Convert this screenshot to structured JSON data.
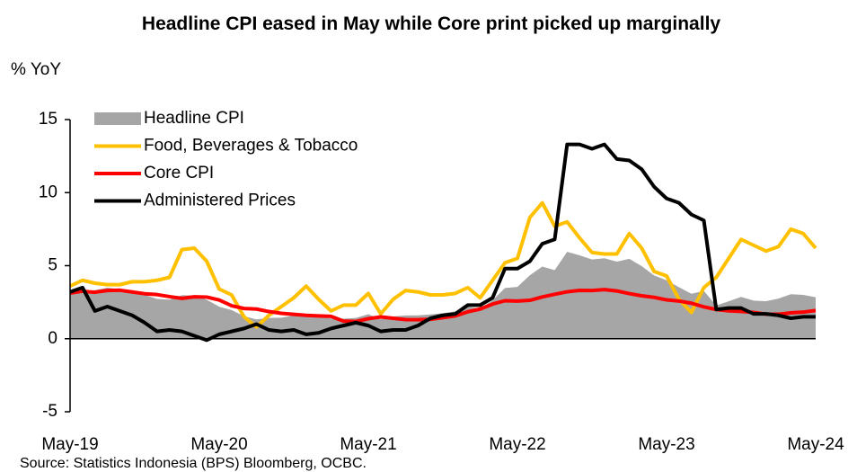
{
  "chart_data": {
    "type": "line",
    "title": "Headline CPI eased in May while Core print picked up marginally",
    "y_axis_label": "% YoY",
    "source": "Source: Statistics Indonesia (BPS) Bloomberg, OCBC.",
    "categories": [
      "May-19",
      null,
      null,
      null,
      null,
      null,
      null,
      null,
      null,
      null,
      null,
      null,
      "May-20",
      null,
      null,
      null,
      null,
      null,
      null,
      null,
      null,
      null,
      null,
      null,
      "May-21",
      null,
      null,
      null,
      null,
      null,
      null,
      null,
      null,
      null,
      null,
      null,
      "May-22",
      null,
      null,
      null,
      null,
      null,
      null,
      null,
      null,
      null,
      null,
      null,
      "May-23",
      null,
      null,
      null,
      null,
      null,
      null,
      null,
      null,
      null,
      null,
      null,
      "May-24"
    ],
    "ylim": [
      -5,
      15
    ],
    "yticks": [
      -5,
      0,
      5,
      10,
      15
    ],
    "legend": "upper left",
    "series": [
      {
        "name": "Headline CPI",
        "kind": "area",
        "color": "#a6a6a6",
        "values": [
          3.32,
          3.28,
          3.32,
          3.49,
          3.39,
          3.13,
          3.0,
          2.72,
          2.68,
          2.98,
          2.96,
          2.67,
          2.19,
          1.96,
          1.54,
          1.32,
          1.42,
          1.44,
          1.59,
          1.68,
          1.55,
          1.38,
          1.37,
          1.42,
          1.68,
          1.33,
          1.52,
          1.59,
          1.6,
          1.66,
          1.75,
          1.87,
          2.18,
          2.06,
          2.64,
          3.47,
          3.55,
          4.35,
          4.94,
          4.69,
          5.95,
          5.71,
          5.42,
          5.51,
          5.28,
          5.47,
          4.97,
          4.33,
          4.0,
          3.52,
          3.08,
          3.27,
          2.28,
          2.56,
          2.86,
          2.61,
          2.57,
          2.75,
          3.05,
          3.0,
          2.84
        ]
      },
      {
        "name": "Food, Beverages & Tobacco",
        "kind": "line",
        "color": "#ffc000",
        "values": [
          3.6,
          4.0,
          3.8,
          3.7,
          3.7,
          3.9,
          3.9,
          4.0,
          4.2,
          6.1,
          6.2,
          5.3,
          3.4,
          3.0,
          1.5,
          0.8,
          1.6,
          2.2,
          2.8,
          3.6,
          2.7,
          1.9,
          2.3,
          2.3,
          3.1,
          1.7,
          2.7,
          3.3,
          3.2,
          3.0,
          3.0,
          3.1,
          3.5,
          2.8,
          4.0,
          5.2,
          5.5,
          8.3,
          9.3,
          7.7,
          8.0,
          6.9,
          5.9,
          5.8,
          5.8,
          7.2,
          6.2,
          4.6,
          4.3,
          2.7,
          1.8,
          3.5,
          4.2,
          5.5,
          6.8,
          6.4,
          6.0,
          6.3,
          7.5,
          7.2,
          6.2
        ]
      },
      {
        "name": "Core CPI",
        "kind": "line",
        "color": "#ff0000",
        "values": [
          3.12,
          3.25,
          3.18,
          3.3,
          3.32,
          3.2,
          3.08,
          3.02,
          2.88,
          2.76,
          2.87,
          2.85,
          2.65,
          2.26,
          2.07,
          2.03,
          1.86,
          1.74,
          1.67,
          1.6,
          1.56,
          1.53,
          1.21,
          1.18,
          1.37,
          1.49,
          1.4,
          1.31,
          1.3,
          1.33,
          1.44,
          1.56,
          1.84,
          2.03,
          2.37,
          2.6,
          2.58,
          2.63,
          2.86,
          3.04,
          3.21,
          3.31,
          3.3,
          3.36,
          3.27,
          3.09,
          2.94,
          2.83,
          2.66,
          2.58,
          2.43,
          2.18,
          2.0,
          1.91,
          1.87,
          1.8,
          1.68,
          1.68,
          1.77,
          1.82,
          1.93
        ]
      },
      {
        "name": "Administered Prices",
        "kind": "line",
        "color": "#000000",
        "values": [
          3.2,
          3.5,
          1.9,
          2.2,
          1.9,
          1.6,
          1.1,
          0.5,
          0.6,
          0.5,
          0.2,
          -0.1,
          0.3,
          0.5,
          0.7,
          1.0,
          0.6,
          0.5,
          0.6,
          0.3,
          0.4,
          0.7,
          0.9,
          1.1,
          0.9,
          0.5,
          0.6,
          0.6,
          0.9,
          1.4,
          1.6,
          1.7,
          2.3,
          2.3,
          2.8,
          4.8,
          4.8,
          5.3,
          6.5,
          6.8,
          13.3,
          13.3,
          13.0,
          13.3,
          12.3,
          12.2,
          11.6,
          10.4,
          9.6,
          9.3,
          8.5,
          8.1,
          2.0,
          2.1,
          2.1,
          1.7,
          1.7,
          1.6,
          1.4,
          1.5,
          1.5
        ]
      }
    ]
  }
}
